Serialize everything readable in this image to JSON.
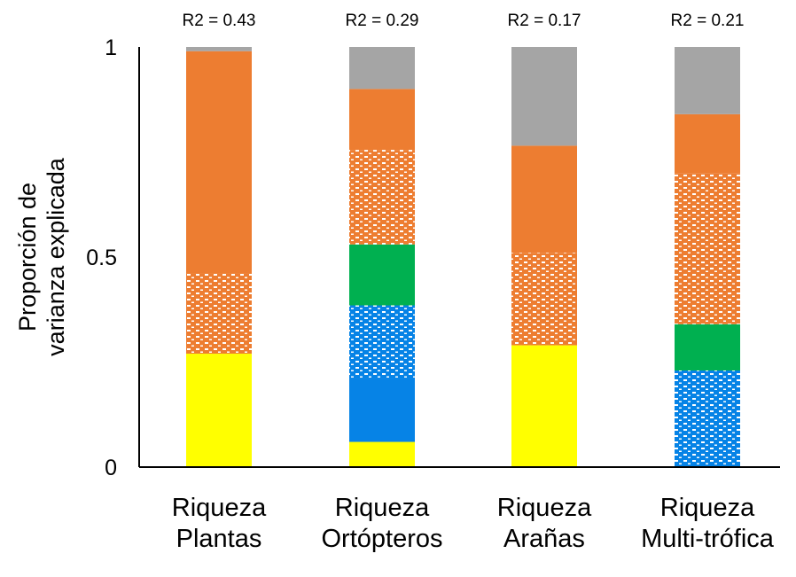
{
  "chart_data": {
    "type": "bar",
    "stacked": true,
    "ylabel": "Proporción de varianza explicada",
    "ylabel_lines": [
      "Proporción de",
      "varianza explicada"
    ],
    "xlabel": "",
    "ylim": [
      0,
      1
    ],
    "yticks": [
      "0",
      "0.5",
      "1"
    ],
    "grid": false,
    "legend": "none",
    "categories": [
      [
        "Riqueza",
        "Plantas"
      ],
      [
        "Riqueza",
        "Ortópteros"
      ],
      [
        "Riqueza",
        "Arañas"
      ],
      [
        "Riqueza",
        "Multi-trófica"
      ]
    ],
    "annotations": [
      "R2 = 0.43",
      "R2 = 0.29",
      "R2 = 0.17",
      "R2 = 0.21"
    ],
    "segment_styles": [
      {
        "color": "#FFFF00",
        "pattern": "solid"
      },
      {
        "color": "#0683E6",
        "pattern": "solid"
      },
      {
        "color": "#0683E6",
        "pattern": "hatched"
      },
      {
        "color": "#00B050",
        "pattern": "solid"
      },
      {
        "color": "#ED7D31",
        "pattern": "hatched"
      },
      {
        "color": "#ED7D31",
        "pattern": "solid"
      },
      {
        "color": "#A5A5A5",
        "pattern": "solid"
      }
    ],
    "series": [
      {
        "values": [
          0.27,
          0.06,
          0.29,
          0.0
        ]
      },
      {
        "values": [
          0.0,
          0.15,
          0.0,
          0.0
        ]
      },
      {
        "values": [
          0.0,
          0.175,
          0.0,
          0.23
        ]
      },
      {
        "values": [
          0.0,
          0.145,
          0.0,
          0.11
        ]
      },
      {
        "values": [
          0.19,
          0.225,
          0.22,
          0.36
        ]
      },
      {
        "values": [
          0.53,
          0.145,
          0.255,
          0.14
        ]
      },
      {
        "values": [
          0.01,
          0.1,
          0.235,
          0.16
        ]
      }
    ]
  }
}
